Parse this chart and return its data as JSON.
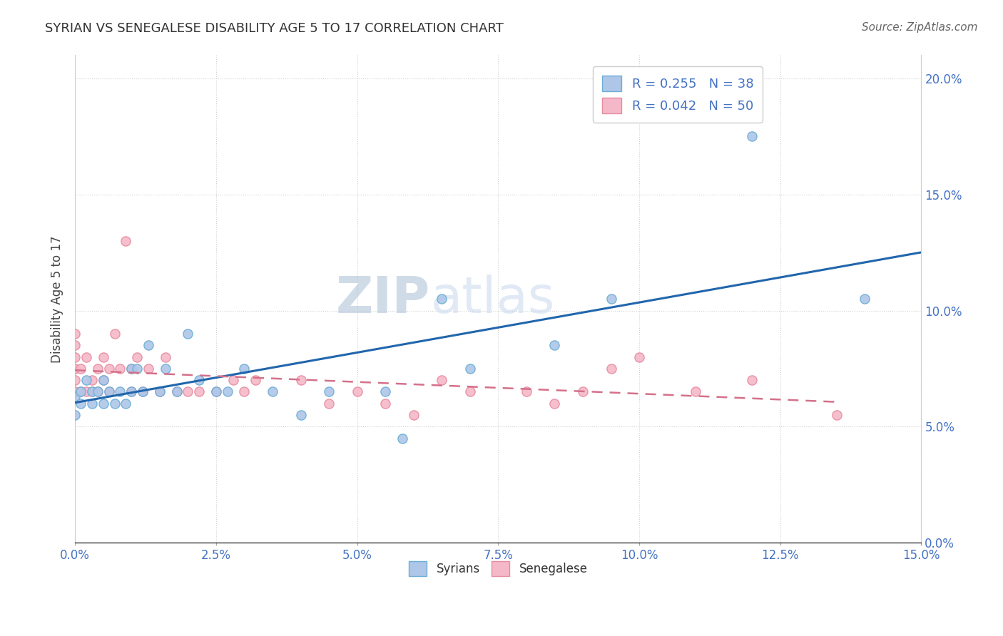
{
  "title": "SYRIAN VS SENEGALESE DISABILITY AGE 5 TO 17 CORRELATION CHART",
  "source": "Source: ZipAtlas.com",
  "ylabel": "Disability Age 5 to 17",
  "xlim": [
    0.0,
    0.15
  ],
  "ylim": [
    0.0,
    0.21
  ],
  "syrians_x": [
    0.0,
    0.0,
    0.001,
    0.001,
    0.002,
    0.003,
    0.003,
    0.004,
    0.005,
    0.005,
    0.006,
    0.007,
    0.008,
    0.009,
    0.01,
    0.01,
    0.011,
    0.012,
    0.013,
    0.015,
    0.016,
    0.018,
    0.02,
    0.022,
    0.025,
    0.027,
    0.03,
    0.035,
    0.04,
    0.045,
    0.055,
    0.058,
    0.065,
    0.07,
    0.085,
    0.095,
    0.12,
    0.14
  ],
  "syrians_y": [
    0.063,
    0.055,
    0.065,
    0.06,
    0.07,
    0.065,
    0.06,
    0.065,
    0.07,
    0.06,
    0.065,
    0.06,
    0.065,
    0.06,
    0.075,
    0.065,
    0.075,
    0.065,
    0.085,
    0.065,
    0.075,
    0.065,
    0.09,
    0.07,
    0.065,
    0.065,
    0.075,
    0.065,
    0.055,
    0.065,
    0.065,
    0.045,
    0.105,
    0.075,
    0.085,
    0.105,
    0.175,
    0.105
  ],
  "senegalese_x": [
    0.0,
    0.0,
    0.0,
    0.0,
    0.0,
    0.0,
    0.001,
    0.001,
    0.002,
    0.002,
    0.003,
    0.003,
    0.004,
    0.004,
    0.005,
    0.005,
    0.006,
    0.006,
    0.007,
    0.008,
    0.009,
    0.01,
    0.01,
    0.011,
    0.012,
    0.013,
    0.015,
    0.016,
    0.018,
    0.02,
    0.022,
    0.025,
    0.028,
    0.03,
    0.032,
    0.04,
    0.045,
    0.05,
    0.055,
    0.06,
    0.065,
    0.07,
    0.08,
    0.085,
    0.09,
    0.095,
    0.1,
    0.11,
    0.12,
    0.135
  ],
  "senegalese_y": [
    0.065,
    0.07,
    0.075,
    0.08,
    0.085,
    0.09,
    0.065,
    0.075,
    0.065,
    0.08,
    0.065,
    0.07,
    0.065,
    0.075,
    0.07,
    0.08,
    0.065,
    0.075,
    0.09,
    0.075,
    0.13,
    0.065,
    0.075,
    0.08,
    0.065,
    0.075,
    0.065,
    0.08,
    0.065,
    0.065,
    0.065,
    0.065,
    0.07,
    0.065,
    0.07,
    0.07,
    0.06,
    0.065,
    0.06,
    0.055,
    0.07,
    0.065,
    0.065,
    0.06,
    0.065,
    0.075,
    0.08,
    0.065,
    0.07,
    0.055
  ],
  "syrian_R": 0.255,
  "syrian_N": 38,
  "senegalese_R": 0.042,
  "senegalese_N": 50,
  "syrian_dot_fill": "#aec6e8",
  "syrian_dot_edge": "#6baed6",
  "senegalese_dot_fill": "#f4b8c8",
  "senegalese_dot_edge": "#e88ca0",
  "trend_syrian_color": "#2166ac",
  "trend_senegalese_color": "#d4708a",
  "watermark_zip": "ZIP",
  "watermark_atlas": "atlas",
  "background_color": "#ffffff",
  "grid_color": "#cccccc",
  "legend_text_color": "#4472c4",
  "axis_text_color": "#4472c4",
  "title_color": "#333333",
  "source_color": "#666666"
}
